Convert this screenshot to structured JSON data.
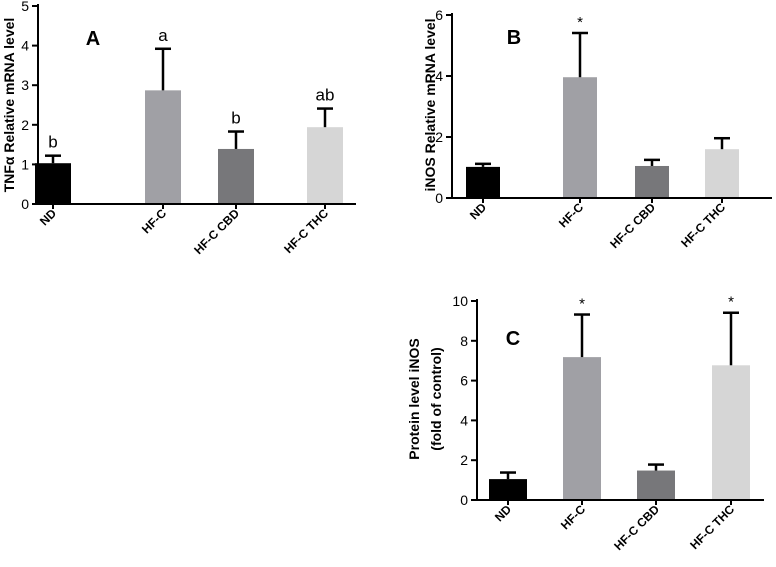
{
  "chart_data": [
    {
      "type": "bar",
      "panel_label": "A",
      "ylabel": "TNFα Relative mRNA level",
      "ylim": [
        0,
        5
      ],
      "yticks": [
        "0",
        "1",
        "2",
        "3",
        "4",
        "5"
      ],
      "categories": [
        "ND",
        "HF-C",
        "HF-C CBD",
        "HF-C THC"
      ],
      "values": [
        1.03,
        2.87,
        1.39,
        1.94
      ],
      "errors": [
        0.19,
        1.05,
        0.44,
        0.47
      ],
      "annotations": [
        "b",
        "a",
        "b",
        "ab"
      ],
      "colors": [
        "#000000",
        "#a0a0a5",
        "#77777a",
        "#d6d6d6"
      ]
    },
    {
      "type": "bar",
      "panel_label": "B",
      "ylabel": "iNOS Relative mRNA level",
      "ylim": [
        0,
        6
      ],
      "yticks": [
        "0",
        "2",
        "4",
        "6"
      ],
      "categories": [
        "ND",
        "HF-C",
        "HF-C CBD",
        "HF-C THC"
      ],
      "values": [
        1.02,
        3.96,
        1.05,
        1.6
      ],
      "errors": [
        0.1,
        1.45,
        0.2,
        0.36
      ],
      "annotations": [
        "",
        "*",
        "",
        ""
      ],
      "colors": [
        "#000000",
        "#a0a0a5",
        "#77777a",
        "#d6d6d6"
      ]
    },
    {
      "type": "bar",
      "panel_label": "C",
      "ylabel": "Protein level iNOS",
      "ylabel2": "(fold of control)",
      "ylim": [
        0,
        10
      ],
      "yticks": [
        "0",
        "2",
        "4",
        "6",
        "8",
        "10"
      ],
      "categories": [
        "ND",
        "HF-C",
        "HF-C CBD",
        "HF-C THC"
      ],
      "values": [
        1.05,
        7.18,
        1.48,
        6.77
      ],
      "errors": [
        0.33,
        2.14,
        0.3,
        2.64
      ],
      "annotations": [
        "",
        "*",
        "",
        "*"
      ],
      "colors": [
        "#000000",
        "#a0a0a5",
        "#77777a",
        "#d6d6d6"
      ]
    }
  ]
}
